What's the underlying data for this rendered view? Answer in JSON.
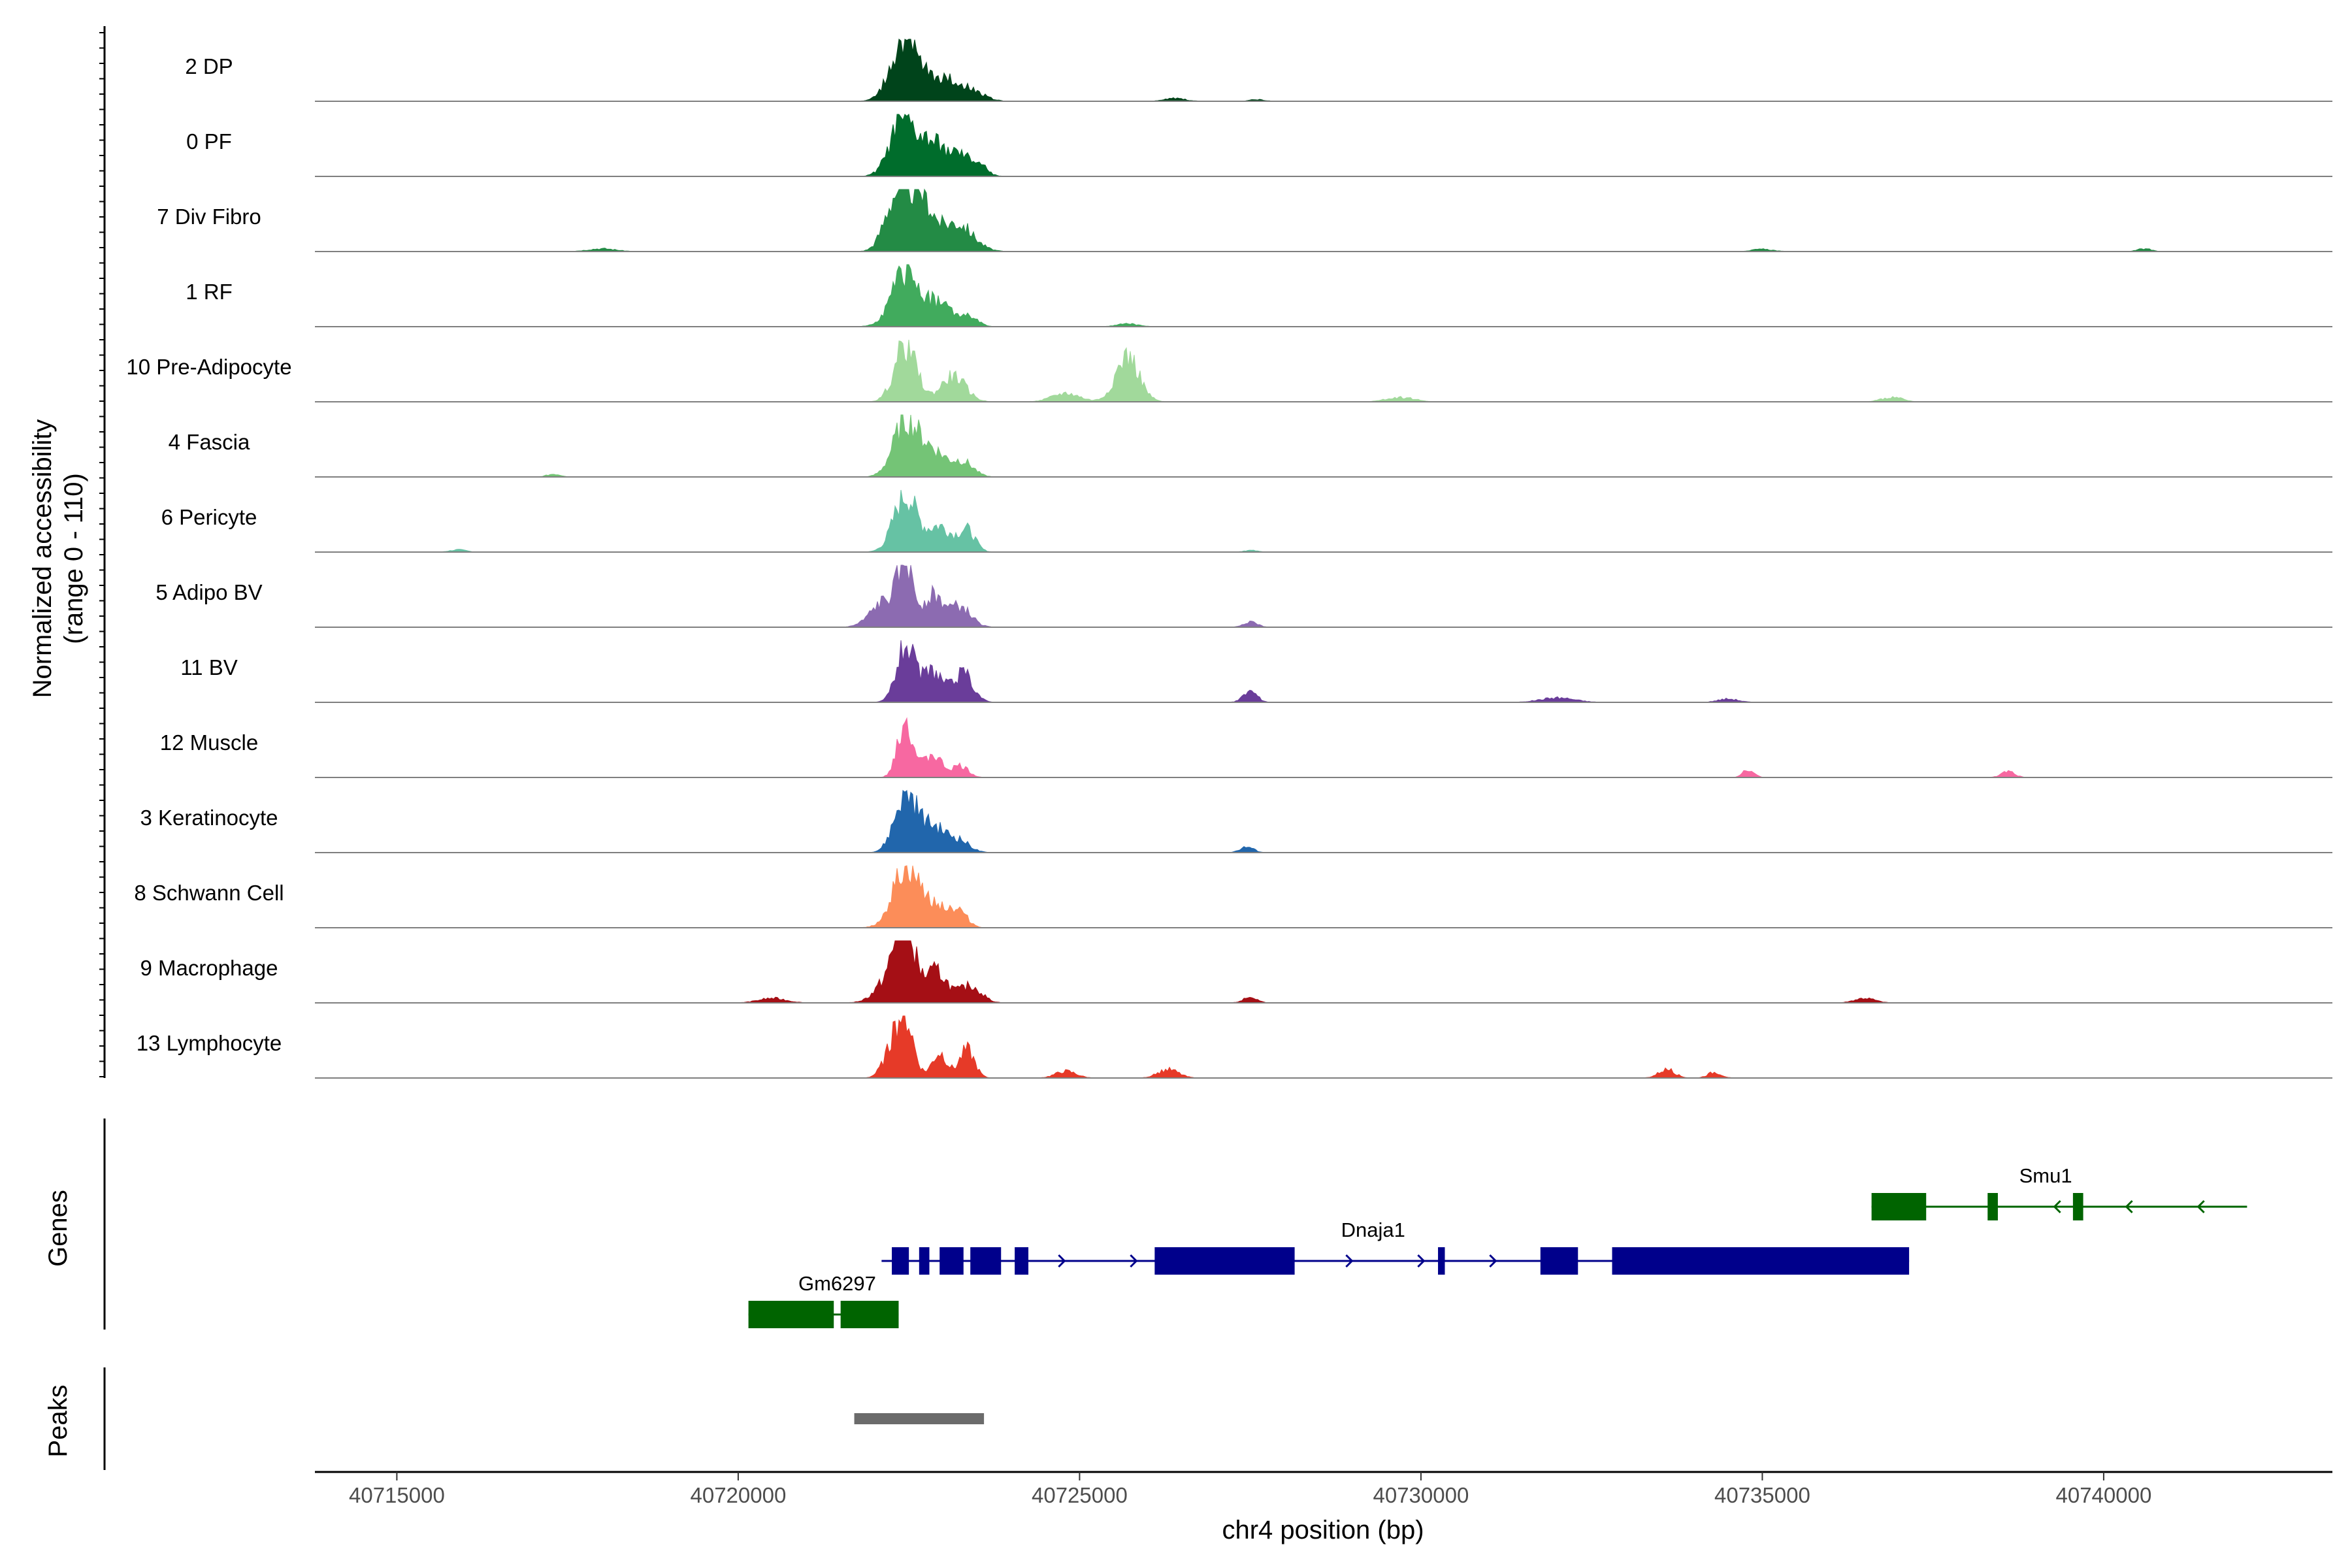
{
  "chart_data": {
    "type": "coverage",
    "y_axis_title": [
      "Normalized accessibility",
      "(range 0 - 110)"
    ],
    "x_axis_title": "chr4 position (bp)",
    "chromosome": "chr4",
    "xlim": [
      40713800,
      40743350
    ],
    "x_ticks": [
      40715000,
      40720000,
      40725000,
      40730000,
      40735000,
      40740000
    ],
    "x_tick_labels": [
      "40715000",
      "40720000",
      "40725000",
      "40730000",
      "40735000",
      "40740000"
    ],
    "y_range": [
      0,
      110
    ],
    "tracks": [
      {
        "name": "2 DP",
        "color": "#00441b",
        "peaks": [
          [
            40722420,
            100,
            190
          ],
          [
            40722950,
            42,
            280
          ],
          [
            40723450,
            12,
            180
          ],
          [
            40726400,
            5,
            150
          ],
          [
            40727600,
            3,
            100
          ]
        ]
      },
      {
        "name": "0 PF",
        "color": "#006d2c",
        "peaks": [
          [
            40722400,
            95,
            180
          ],
          [
            40722820,
            55,
            190
          ],
          [
            40723250,
            35,
            200
          ],
          [
            40723550,
            12,
            100
          ]
        ]
      },
      {
        "name": "7 Div Fibro",
        "color": "#238b45",
        "peaks": [
          [
            40722300,
            90,
            160
          ],
          [
            40722650,
            100,
            180
          ],
          [
            40723200,
            50,
            230
          ],
          [
            40718000,
            5,
            200
          ],
          [
            40735000,
            4,
            150
          ],
          [
            40740600,
            5,
            100
          ]
        ]
      },
      {
        "name": "1 RF",
        "color": "#41ab5d",
        "peaks": [
          [
            40722450,
            95,
            200
          ],
          [
            40722950,
            40,
            200
          ],
          [
            40723400,
            15,
            120
          ],
          [
            40725700,
            5,
            150
          ]
        ]
      },
      {
        "name": "10 Pre-Adipocyte",
        "color": "#a1d99b",
        "peaks": [
          [
            40722450,
            100,
            160
          ],
          [
            40723150,
            45,
            180
          ],
          [
            40725700,
            80,
            170
          ],
          [
            40724800,
            15,
            200
          ],
          [
            40729700,
            8,
            200
          ],
          [
            40736900,
            8,
            150
          ]
        ]
      },
      {
        "name": "4 Fascia",
        "color": "#74c476",
        "peaks": [
          [
            40722450,
            95,
            180
          ],
          [
            40722850,
            45,
            200
          ],
          [
            40723300,
            25,
            150
          ],
          [
            40717300,
            5,
            100
          ]
        ]
      },
      {
        "name": "6 Pericyte",
        "color": "#66c2a4",
        "peaks": [
          [
            40722450,
            100,
            170
          ],
          [
            40722950,
            45,
            170
          ],
          [
            40723350,
            38,
            120
          ],
          [
            40715900,
            4,
            120
          ],
          [
            40727500,
            3,
            100
          ]
        ]
      },
      {
        "name": "5 Adipo BV",
        "color": "#8c6bb1",
        "peaks": [
          [
            40722450,
            105,
            110
          ],
          [
            40722150,
            45,
            200
          ],
          [
            40722850,
            55,
            150
          ],
          [
            40723250,
            35,
            160
          ],
          [
            40727500,
            10,
            100
          ]
        ]
      },
      {
        "name": "11 BV",
        "color": "#6a3d9a",
        "peaks": [
          [
            40722450,
            100,
            130
          ],
          [
            40722850,
            55,
            150
          ],
          [
            40723300,
            50,
            140
          ],
          [
            40727500,
            20,
            100
          ],
          [
            40732000,
            8,
            250
          ],
          [
            40734500,
            6,
            150
          ]
        ]
      },
      {
        "name": "12 Muscle",
        "color": "#f768a1",
        "peaks": [
          [
            40722450,
            100,
            110
          ],
          [
            40722850,
            40,
            130
          ],
          [
            40723250,
            20,
            120
          ],
          [
            40734800,
            15,
            80
          ],
          [
            40738600,
            10,
            100
          ]
        ]
      },
      {
        "name": "3 Keratinocyte",
        "color": "#2166ac",
        "peaks": [
          [
            40722450,
            100,
            160
          ],
          [
            40722850,
            45,
            200
          ],
          [
            40723250,
            18,
            150
          ],
          [
            40727450,
            10,
            100
          ]
        ]
      },
      {
        "name": "8 Schwann Cell",
        "color": "#fc8d59",
        "peaks": [
          [
            40722450,
            100,
            190
          ],
          [
            40722900,
            40,
            200
          ],
          [
            40723250,
            22,
            120
          ]
        ]
      },
      {
        "name": "9 Macrophage",
        "color": "#a50f15",
        "peaks": [
          [
            40722450,
            105,
            130
          ],
          [
            40722300,
            55,
            220
          ],
          [
            40722900,
            55,
            160
          ],
          [
            40723400,
            30,
            160
          ],
          [
            40720500,
            8,
            200
          ],
          [
            40727500,
            10,
            100
          ],
          [
            40736500,
            8,
            150
          ]
        ]
      },
      {
        "name": "13 Lymphocyte",
        "color": "#e63a28",
        "peaks": [
          [
            40722450,
            100,
            120
          ],
          [
            40722250,
            45,
            130
          ],
          [
            40722950,
            45,
            110
          ],
          [
            40723350,
            50,
            110
          ],
          [
            40724800,
            12,
            150
          ],
          [
            40726300,
            15,
            150
          ],
          [
            40733600,
            15,
            120
          ],
          [
            40734300,
            10,
            100
          ]
        ]
      }
    ],
    "genes_track_label": "Genes",
    "peaks_track_label": "Peaks",
    "genes": [
      {
        "name": "Dnaja1",
        "strand": "+",
        "color": "#00008b",
        "row": 1,
        "start": 40722100,
        "end": 40737150,
        "label_pos": 40729300,
        "exons": [
          [
            40722250,
            40722500
          ],
          [
            40722650,
            40722800
          ],
          [
            40722950,
            40723300
          ],
          [
            40723400,
            40723850
          ],
          [
            40724050,
            40724250
          ],
          [
            40726100,
            40728150
          ],
          [
            40730250,
            40730350
          ],
          [
            40731750,
            40732300
          ],
          [
            40732800,
            40737150
          ]
        ]
      },
      {
        "name": "Smu1",
        "strand": "-",
        "color": "#006400",
        "row": 0,
        "start": 40736600,
        "end": 40742100,
        "label_pos": 40739150,
        "exons": [
          [
            40736600,
            40737400
          ],
          [
            40738300,
            40738450
          ],
          [
            40739550,
            40739700
          ]
        ]
      },
      {
        "name": "Gm6297",
        "strand": "-",
        "color": "#006400",
        "row": 2,
        "start": 40720150,
        "end": 40722350,
        "label_pos": 40721450,
        "exons": [
          [
            40720150,
            40721400
          ],
          [
            40721500,
            40722350
          ]
        ]
      }
    ],
    "peaks": [
      [
        40721700,
        40723600
      ]
    ],
    "peak_color": "#6b6b6b"
  }
}
